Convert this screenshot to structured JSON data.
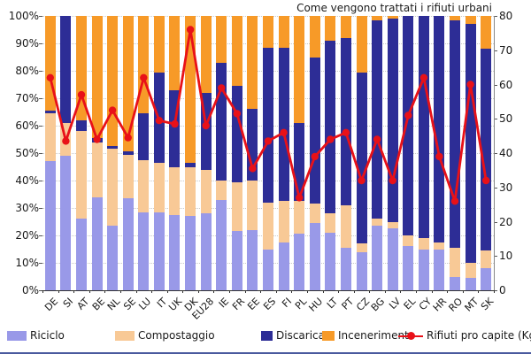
{
  "title": "Come vengono trattati i rifiuti urbani",
  "axes": {
    "left_ticks": [
      "100%",
      "90%",
      "80%",
      "70%",
      "60%",
      "50%",
      "40%",
      "30%",
      "20%",
      "10%",
      "0%"
    ],
    "right_ticks": [
      "80",
      "70",
      "60",
      "50",
      "40",
      "30",
      "20",
      "10",
      "0"
    ]
  },
  "legend": [
    {
      "label": "Riciclo",
      "type": "swatch",
      "color": "#9999e8"
    },
    {
      "label": "Compostaggio",
      "type": "swatch",
      "color": "#f8c996"
    },
    {
      "label": "Discarica",
      "type": "swatch",
      "color": "#2d2d96"
    },
    {
      "label": "Incenerimento",
      "type": "swatch",
      "color": "#f79a28"
    },
    {
      "label": "Rifiuti pro capite (Kg)",
      "type": "line",
      "color": "#e81118"
    }
  ],
  "colors": {
    "riciclo": "#9999e8",
    "compostaggio": "#f8c996",
    "discarica": "#2d2d96",
    "incenerimento": "#f79a28",
    "line": "#e81118",
    "grid": "#c9c9c9"
  },
  "chart_data": {
    "type": "combo-stacked-bar-line",
    "title": "Come vengono trattati i rifiuti urbani",
    "categories": [
      "DE",
      "SI",
      "AT",
      "BE",
      "NL",
      "SE",
      "LU",
      "IT",
      "UK",
      "DK",
      "EU28",
      "IE",
      "FR",
      "EE",
      "ES",
      "FI",
      "PL",
      "HU",
      "LT",
      "PT",
      "CZ",
      "BG",
      "LV",
      "EL",
      "CY",
      "HR",
      "RO",
      "MT",
      "SK"
    ],
    "series": [
      {
        "name": "Riciclo",
        "unit": "%",
        "values": [
          47,
          49,
          26,
          34,
          23.5,
          33.5,
          28.5,
          28.5,
          27.5,
          27,
          28,
          33,
          21.5,
          22,
          15,
          17.5,
          20.5,
          24.5,
          21,
          15.5,
          14,
          23.5,
          22.5,
          16,
          15,
          15,
          5,
          4.5,
          8
        ]
      },
      {
        "name": "Compostaggio",
        "unit": "%",
        "values": [
          17.5,
          12,
          32,
          20,
          28,
          16,
          19,
          18,
          17.5,
          18,
          16,
          7,
          18,
          18,
          17,
          15,
          12,
          7,
          7,
          15.5,
          3,
          2.5,
          2.5,
          4,
          4,
          2.5,
          10.5,
          5.5,
          6.5
        ]
      },
      {
        "name": "Discarica",
        "unit": "%",
        "values": [
          1,
          39,
          4,
          1.5,
          1,
          1,
          17,
          33,
          28,
          1.5,
          28,
          43,
          35,
          26,
          56.5,
          56,
          28.5,
          53.5,
          63,
          61,
          62.5,
          72.5,
          74,
          80,
          81,
          82.5,
          83,
          87,
          73.5
        ]
      },
      {
        "name": "Incenerimento",
        "unit": "%",
        "values": [
          34.5,
          0,
          38,
          44.5,
          47.5,
          49.5,
          35.5,
          20.5,
          27,
          53.5,
          28,
          17,
          25.5,
          34,
          11.5,
          11.5,
          39,
          15,
          9,
          8,
          20.5,
          1.5,
          1,
          0,
          0,
          0,
          1.5,
          3,
          12
        ]
      }
    ],
    "line": {
      "name": "Rifiuti pro capite (Kg)",
      "axis": "right",
      "values": [
        62,
        43.5,
        57,
        44,
        52.5,
        44.5,
        62,
        49.5,
        48.5,
        76,
        48,
        59,
        51.5,
        35.5,
        43.5,
        46,
        27,
        39,
        44,
        46,
        32,
        44,
        32,
        51,
        62,
        39,
        26,
        60,
        32
      ]
    },
    "left_axis": {
      "min": 0,
      "max": 100,
      "unit": "%",
      "grid": true
    },
    "right_axis": {
      "min": 0,
      "max": 80
    },
    "legend_position": "bottom"
  }
}
